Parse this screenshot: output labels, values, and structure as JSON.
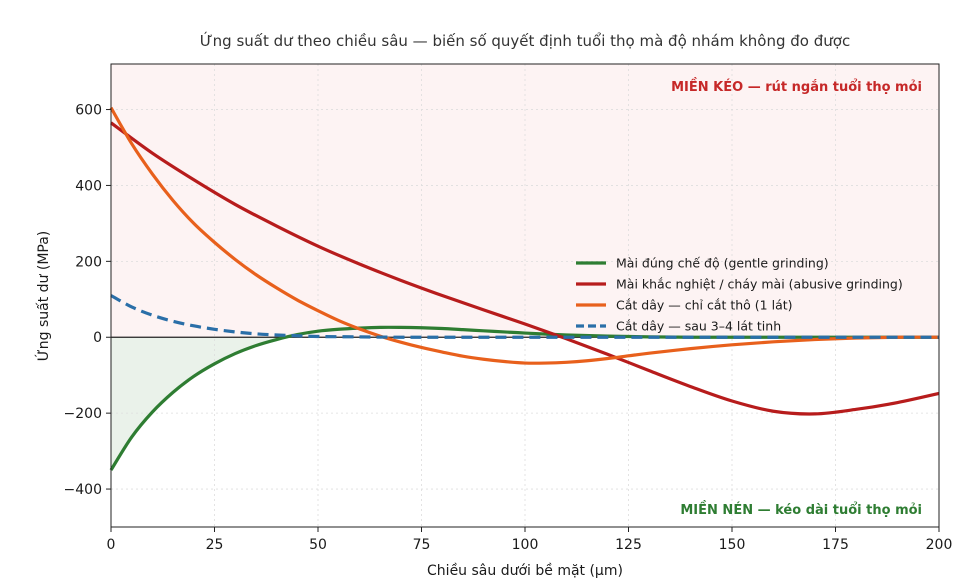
{
  "chart_data": {
    "type": "line",
    "title": "Ứng suất dư theo chiều sâu — biến số quyết định tuổi thọ mà độ nhám không đo được",
    "xlabel": "Chiều sâu dưới bề mặt (µm)",
    "ylabel": "Ứng suất dư (MPa)",
    "xlim": [
      0,
      200
    ],
    "ylim": [
      -500,
      720
    ],
    "x_ticks": [
      "0",
      "25",
      "50",
      "75",
      "100",
      "125",
      "150",
      "175",
      "200"
    ],
    "y_ticks": [
      "−400",
      "−200",
      "0",
      "200",
      "400",
      "600"
    ],
    "grid": true,
    "legend_position": "right",
    "series": [
      {
        "name": "Mài đúng chế độ (gentle grinding)",
        "color": "#2e7d32",
        "style": "solid",
        "x": [
          0,
          5,
          10,
          15,
          20,
          25,
          30,
          35,
          40,
          45,
          50,
          55,
          60,
          65,
          70,
          75,
          80,
          85,
          90,
          95,
          100,
          110,
          120,
          130,
          140,
          150,
          175,
          200
        ],
        "y": [
          -350,
          -263,
          -197,
          -145,
          -103,
          -70,
          -43,
          -22,
          -6,
          7,
          16,
          21,
          24,
          26,
          26,
          25,
          23,
          20,
          17,
          14,
          11,
          6,
          3,
          1,
          0,
          0,
          0,
          0
        ]
      },
      {
        "name": "Mài khắc nghiệt / cháy mài (abusive grinding)",
        "color": "#b71c1c",
        "style": "solid",
        "x": [
          0,
          10,
          20,
          30,
          40,
          50,
          60,
          70,
          80,
          90,
          100,
          110,
          120,
          130,
          140,
          150,
          160,
          170,
          180,
          190,
          200
        ],
        "y": [
          565,
          485,
          415,
          350,
          293,
          240,
          193,
          150,
          110,
          72,
          35,
          -4,
          -45,
          -88,
          -130,
          -168,
          -195,
          -202,
          -190,
          -172,
          -148
        ]
      },
      {
        "name": "Cắt dây — chỉ cắt thô (1 lát)",
        "color": "#e8601c",
        "style": "solid",
        "x": [
          0,
          5,
          10,
          15,
          20,
          25,
          30,
          35,
          40,
          45,
          50,
          55,
          60,
          65,
          70,
          75,
          80,
          85,
          90,
          95,
          100,
          105,
          110,
          115,
          120,
          125,
          130,
          140,
          150,
          160,
          170,
          180,
          190,
          200
        ],
        "y": [
          605,
          510,
          430,
          360,
          300,
          250,
          205,
          165,
          130,
          98,
          70,
          44,
          22,
          3,
          -13,
          -27,
          -39,
          -50,
          -58,
          -64,
          -68,
          -68,
          -66,
          -62,
          -56,
          -49,
          -42,
          -30,
          -20,
          -12,
          -6,
          -2,
          0,
          0
        ]
      },
      {
        "name": "Cắt dây — sau 3–4 lát tinh",
        "color": "#2a6fa8",
        "style": "dashed",
        "x": [
          0,
          5,
          10,
          15,
          20,
          25,
          30,
          35,
          40,
          45,
          50,
          60,
          70,
          80,
          100,
          150,
          200
        ],
        "y": [
          110,
          80,
          58,
          42,
          30,
          21,
          14,
          9,
          6,
          4,
          2,
          1,
          0,
          0,
          0,
          0,
          0
        ]
      }
    ],
    "annotations": {
      "tension_zone": "MIỀN KÉO — rút ngắn tuổi thọ mỏi",
      "compression_zone": "MIỀN NÉN — kéo dài tuổi thọ mỏi"
    },
    "colors": {
      "tension_fill": "#fdf3f3",
      "compression_fill": "#2e7d32",
      "tension_text": "#c62828",
      "compression_text": "#2e7d32"
    }
  }
}
